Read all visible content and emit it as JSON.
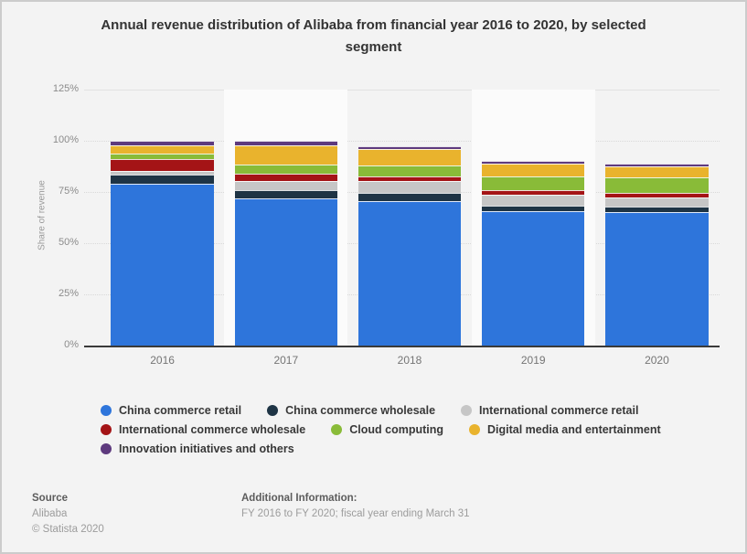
{
  "title": {
    "line1": "Annual revenue distribution of Alibaba from financial year 2016 to 2020, by selected",
    "line2": "segment"
  },
  "chart_data": {
    "type": "bar",
    "stacked": true,
    "title": "Annual revenue distribution of Alibaba from financial year 2016 to 2020, by selected segment",
    "xlabel": "",
    "ylabel": "Share of revenue",
    "ylim": [
      0,
      125
    ],
    "ytick_values": [
      0,
      25,
      50,
      75,
      100,
      125
    ],
    "ytick_labels": [
      "0%",
      "25%",
      "50%",
      "75%",
      "100%",
      "125%"
    ],
    "grid": true,
    "legend_position": "bottom",
    "categories": [
      "2016",
      "2017",
      "2018",
      "2019",
      "2020"
    ],
    "series": [
      {
        "name": "China commerce retail",
        "color": "#2E75DB",
        "values": [
          79.1,
          72.1,
          70.5,
          65.7,
          65.3
        ]
      },
      {
        "name": "China commerce wholesale",
        "color": "#1E3445",
        "values": [
          4.2,
          3.6,
          4.0,
          2.7,
          2.4
        ]
      },
      {
        "name": "International commerce retail",
        "color": "#C6C6C6",
        "values": [
          2.2,
          4.6,
          5.7,
          5.2,
          4.8
        ]
      },
      {
        "name": "International commerce wholesale",
        "color": "#A41416",
        "values": [
          5.4,
          3.8,
          2.6,
          2.2,
          1.9
        ]
      },
      {
        "name": "Cloud computing",
        "color": "#89BB38",
        "values": [
          3.0,
          4.2,
          5.3,
          6.6,
          7.9
        ]
      },
      {
        "name": "Digital media and entertainment",
        "color": "#E9B32D",
        "values": [
          3.9,
          9.3,
          7.8,
          6.4,
          5.3
        ]
      },
      {
        "name": "Innovation initiatives and others",
        "color": "#5E3A7E",
        "values": [
          2.2,
          2.4,
          1.3,
          1.2,
          1.3
        ]
      }
    ],
    "legend_rows": [
      [
        0,
        1,
        2
      ],
      [
        3,
        4,
        5
      ],
      [
        6
      ]
    ]
  },
  "footer": {
    "source_label": "Source",
    "source_name": "Alibaba",
    "copyright": "© Statista 2020",
    "additional_label": "Additional Information:",
    "additional_text": "FY 2016 to FY 2020; fiscal year ending March 31"
  }
}
